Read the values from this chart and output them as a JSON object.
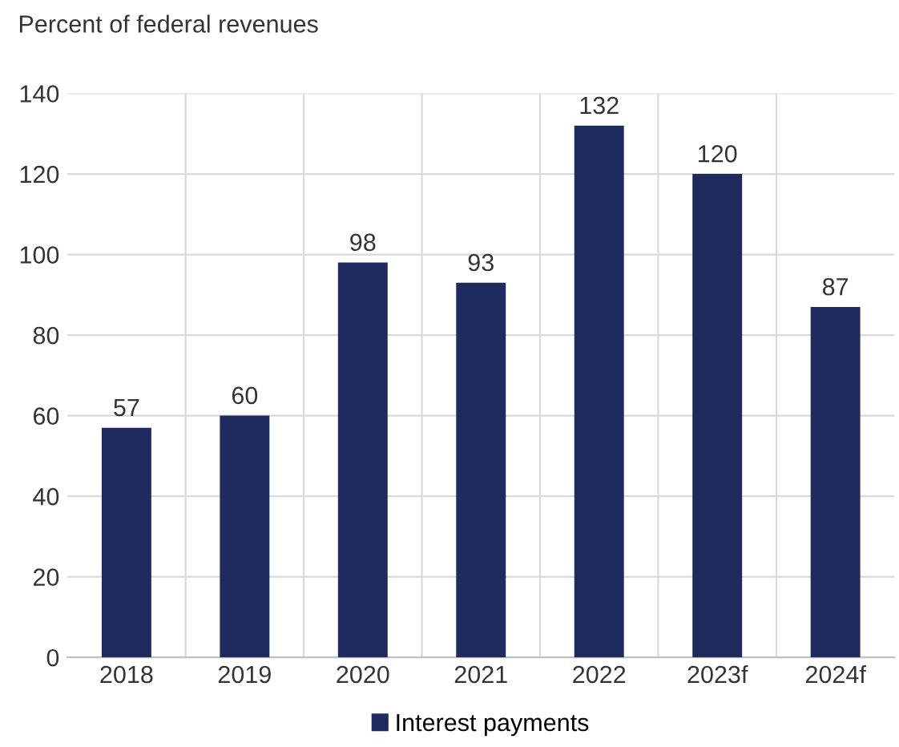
{
  "chart_data": {
    "type": "bar",
    "ylabel": "Percent of federal revenues",
    "categories": [
      "2018",
      "2019",
      "2020",
      "2021",
      "2022",
      "2023f",
      "2024f"
    ],
    "series": [
      {
        "name": "Interest payments",
        "color": "#1f2a5e",
        "values": [
          57,
          60,
          98,
          93,
          132,
          120,
          87
        ]
      }
    ],
    "ylim": [
      0,
      140
    ],
    "yticks": [
      0,
      20,
      40,
      60,
      80,
      100,
      120,
      140
    ],
    "grid": true,
    "legend": "bottom",
    "data_labels": true
  }
}
